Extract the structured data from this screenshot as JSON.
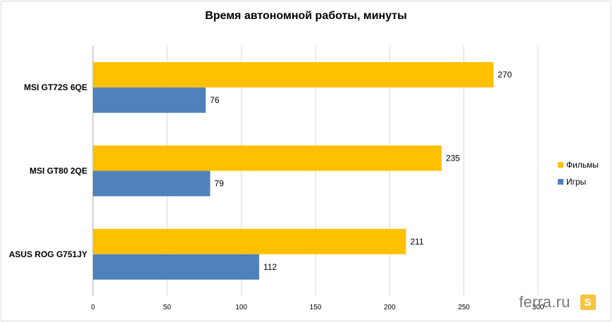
{
  "chart_data": {
    "type": "bar",
    "orientation": "horizontal",
    "title": "Время автономной работы, минуты",
    "categories": [
      "MSI GT72S 6QE",
      "MSI GT80 2QE",
      "ASUS ROG G751JY"
    ],
    "series": [
      {
        "name": "Фильмы",
        "color": "#ffc000",
        "values": [
          270,
          235,
          211
        ]
      },
      {
        "name": "Игры",
        "color": "#4f81bd",
        "values": [
          76,
          79,
          112
        ]
      }
    ],
    "xlim": [
      0,
      300
    ],
    "xticks": [
      0,
      50,
      100,
      150,
      200,
      250,
      300
    ],
    "grid": true,
    "legend": "right"
  },
  "watermark": {
    "text": "ferra.ru",
    "badge": "S"
  }
}
